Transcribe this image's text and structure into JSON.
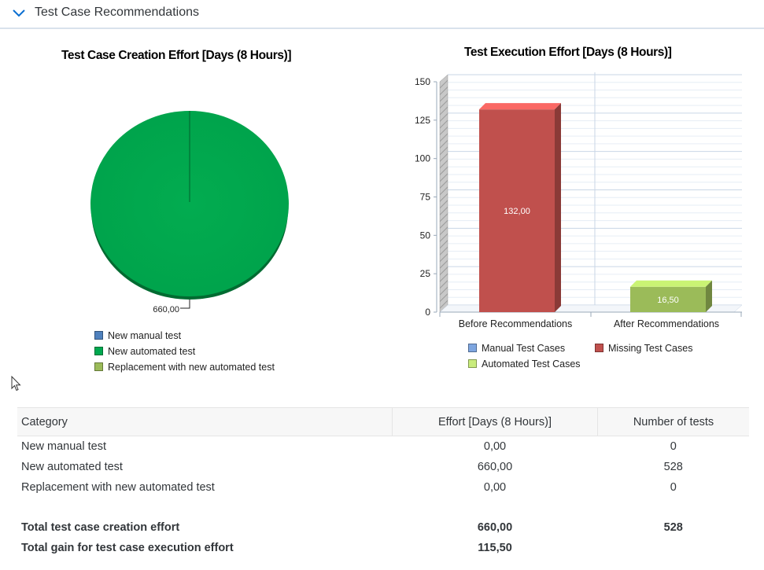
{
  "panel": {
    "title": "Test Case Recommendations",
    "toggle_icon": "chevron-down-icon"
  },
  "pie": {
    "title": "Test Case Creation Effort [Days (8 Hours)]",
    "data_label": "660,00",
    "legend": [
      {
        "label": "New manual test",
        "color": "#4f81bd"
      },
      {
        "label": "New automated test",
        "color": "#00a84f"
      },
      {
        "label": "Replacement with new automated test",
        "color": "#9bbb59"
      }
    ]
  },
  "bar": {
    "title": "Test Execution Effort [Days (8 Hours)]",
    "legend": [
      {
        "label": "Manual Test Cases",
        "color": "#7ea6e0"
      },
      {
        "label": "Missing Test Cases",
        "color": "#c0504d"
      },
      {
        "label": "Automated Test Cases",
        "color": "#c9ec7c"
      }
    ]
  },
  "chart_data": [
    {
      "type": "pie",
      "title": "Test Case Creation Effort [Days (8 Hours)]",
      "categories": [
        "New manual test",
        "New automated test",
        "Replacement with new automated test"
      ],
      "values": [
        0,
        660,
        0
      ],
      "data_labels": [
        "660,00"
      ],
      "legend_position": "bottom",
      "colors": [
        "#4f81bd",
        "#00a84f",
        "#9bbb59"
      ]
    },
    {
      "type": "bar",
      "title": "Test Execution Effort [Days (8 Hours)]",
      "categories": [
        "Before Recommendations",
        "After Recommendations"
      ],
      "series": [
        {
          "name": "Missing Test Cases",
          "values": [
            132,
            null
          ],
          "labels": [
            "132,00",
            ""
          ],
          "color": "#c0504d"
        },
        {
          "name": "Automated Test Cases",
          "values": [
            null,
            16.5
          ],
          "labels": [
            "",
            "16,50"
          ],
          "color": "#9bbb59"
        }
      ],
      "ylim": [
        0,
        150
      ],
      "yticks": [
        "0",
        "25",
        "50",
        "75",
        "100",
        "125",
        "150"
      ],
      "grid": true,
      "legend_position": "bottom"
    }
  ],
  "table": {
    "headers": [
      "Category",
      "Effort [Days (8 Hours)]",
      "Number of tests"
    ],
    "rows": [
      [
        "New manual test",
        "0,00",
        "0"
      ],
      [
        "New automated test",
        "660,00",
        "528"
      ],
      [
        "Replacement with new automated test",
        "0,00",
        "0"
      ]
    ],
    "totals": [
      [
        "Total test case creation effort",
        "660,00",
        "528"
      ],
      [
        "Total gain for test case execution effort",
        "115,50",
        ""
      ]
    ]
  }
}
